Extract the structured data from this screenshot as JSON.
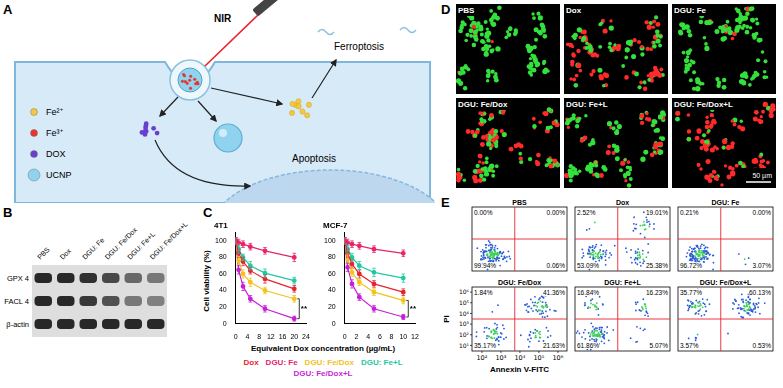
{
  "chart_data": [
    {
      "type": "line",
      "title": "4T1",
      "x": [
        0,
        1,
        2.5,
        5,
        10,
        20
      ],
      "xlim": [
        0,
        24
      ],
      "xticks": [
        0,
        4,
        8,
        12,
        16,
        20,
        24
      ],
      "ylim": [
        0,
        110
      ],
      "yticks": [
        0,
        20,
        40,
        60,
        80,
        100
      ],
      "grid": false,
      "marker": "circle",
      "series": [
        {
          "name": "Dox",
          "color": "#e8232e",
          "values": [
            100,
            85,
            75,
            64,
            54,
            42
          ],
          "errors": [
            4,
            5,
            5,
            4,
            5,
            4
          ]
        },
        {
          "name": "DGU: Fe",
          "color": "#e6246c",
          "values": [
            100,
            98,
            96,
            93,
            88,
            80
          ],
          "errors": [
            3,
            4,
            4,
            4,
            4,
            5
          ]
        },
        {
          "name": "DGU: Fe/Dox",
          "color": "#f2c31b",
          "values": [
            100,
            76,
            60,
            50,
            40,
            30
          ],
          "errors": [
            4,
            5,
            5,
            5,
            4,
            4
          ]
        },
        {
          "name": "DGU: Fe+L",
          "color": "#1fc9a2",
          "values": [
            100,
            90,
            80,
            70,
            61,
            52
          ],
          "errors": [
            4,
            5,
            4,
            5,
            5,
            4
          ]
        },
        {
          "name": "DGU: Fe/Dox+L",
          "color": "#c81fd8",
          "values": [
            100,
            65,
            45,
            30,
            18,
            6
          ],
          "errors": [
            4,
            5,
            5,
            4,
            4,
            3
          ]
        }
      ],
      "annotations": [
        {
          "text": "**",
          "between": [
            "DGU: Fe/Dox",
            "DGU: Fe/Dox+L"
          ]
        }
      ]
    },
    {
      "type": "line",
      "title": "MCF-7",
      "x": [
        0,
        0.5,
        1.25,
        2.5,
        5,
        10
      ],
      "xlim": [
        0,
        12
      ],
      "xticks": [
        0,
        2,
        4,
        6,
        8,
        10,
        12
      ],
      "ylim": [
        0,
        110
      ],
      "yticks": [
        0,
        20,
        40,
        60,
        80,
        100
      ],
      "grid": false,
      "marker": "circle",
      "series": [
        {
          "name": "Dox",
          "color": "#e8232e",
          "values": [
            100,
            85,
            72,
            60,
            48,
            38
          ],
          "errors": [
            4,
            5,
            5,
            5,
            4,
            4
          ]
        },
        {
          "name": "DGU: Fe",
          "color": "#e6246c",
          "values": [
            100,
            98,
            96,
            94,
            90,
            85
          ],
          "errors": [
            3,
            4,
            4,
            4,
            4,
            4
          ]
        },
        {
          "name": "DGU: Fe/Dox",
          "color": "#f2c31b",
          "values": [
            100,
            78,
            62,
            50,
            38,
            28
          ],
          "errors": [
            4,
            5,
            5,
            4,
            4,
            4
          ]
        },
        {
          "name": "DGU: Fe+L",
          "color": "#1fc9a2",
          "values": [
            100,
            90,
            80,
            70,
            62,
            55
          ],
          "errors": [
            4,
            5,
            5,
            5,
            5,
            5
          ]
        },
        {
          "name": "DGU: Fe/Dox+L",
          "color": "#c81fd8",
          "values": [
            100,
            68,
            48,
            32,
            18,
            8
          ],
          "errors": [
            4,
            5,
            5,
            4,
            4,
            3
          ]
        }
      ],
      "annotations": [
        {
          "text": "**",
          "between": [
            "DGU: Fe/Dox",
            "DGU: Fe/Dox+L"
          ]
        }
      ]
    }
  ],
  "figure": {
    "A": {
      "letter": "A",
      "nir": "NIR",
      "ferroptosis": "Ferroptosis",
      "apoptosis": "Apoptosis",
      "legend": [
        {
          "label": "Fe²⁺",
          "color": "#f5c842"
        },
        {
          "label": "Fe³⁺",
          "color": "#e8352e"
        },
        {
          "label": "DOX",
          "color": "#6a3fd0"
        },
        {
          "label": "UCNP",
          "color": "#8fd3ef"
        }
      ]
    },
    "B": {
      "letter": "B",
      "lanes": [
        "PBS",
        "Dox",
        "DGU: Fe",
        "DGU: Fe/Dox",
        "DGU: Fe+L",
        "DGU: Fe/Dox+L"
      ],
      "rows": [
        {
          "label": "GPX 4",
          "intensity": [
            1,
            1,
            0.95,
            0.8,
            0.6,
            0.5
          ]
        },
        {
          "label": "FACL 4",
          "intensity": [
            1,
            1,
            0.9,
            0.75,
            0.5,
            0.45
          ]
        },
        {
          "label": "β-actin",
          "intensity": [
            1,
            1,
            1,
            1,
            1,
            1
          ]
        }
      ]
    },
    "C": {
      "letter": "C",
      "x_label": "Equivalent Dox concentration (µg/mL)",
      "y_label": "Cell viability (%)",
      "legend": "bottom"
    },
    "D": {
      "letter": "D",
      "scale_bar": "50 µm",
      "images": [
        {
          "label": "PBS",
          "dead_share": 0.04
        },
        {
          "label": "Dox",
          "dead_share": 0.6
        },
        {
          "label": "DGU: Fe",
          "dead_share": 0.08
        },
        {
          "label": "DGU: Fe/Dox",
          "dead_share": 0.5
        },
        {
          "label": "DGU: Fe+L",
          "dead_share": 0.25
        },
        {
          "label": "DGU: Fe/Dox+L",
          "dead_share": 0.85
        }
      ]
    },
    "E": {
      "letter": "E",
      "x_label": "Annexin V-FITC",
      "y_label": "PI",
      "xlim": [
        30,
        3000000
      ],
      "xticks": [
        {
          "value": 100,
          "label": "10²"
        },
        {
          "value": 1000,
          "label": "10³"
        },
        {
          "value": 10000,
          "label": "10⁴"
        },
        {
          "value": 100000,
          "label": "10⁵"
        },
        {
          "value": 1000000,
          "label": "10⁶"
        }
      ],
      "ylim": [
        3,
        3000000
      ],
      "yticks": [
        {
          "value": 10,
          "label": "10¹"
        },
        {
          "value": 100,
          "label": "10²"
        },
        {
          "value": 1000,
          "label": "10³"
        },
        {
          "value": 10000,
          "label": "10⁴"
        },
        {
          "value": 100000,
          "label": "10⁵"
        },
        {
          "value": 1000000,
          "label": "10⁶"
        }
      ],
      "plots": [
        {
          "label": "PBS",
          "values": [
            0.0,
            0.0,
            99.94,
            0.06
          ],
          "value_labels": [
            "0.00%",
            "0.00%",
            "99.94%",
            "0.06%"
          ]
        },
        {
          "label": "Dox",
          "values": [
            2.52,
            19.01,
            53.09,
            25.38
          ],
          "value_labels": [
            "2.52%",
            "19.01%",
            "53.09%",
            "25.38%"
          ]
        },
        {
          "label": "DGU: Fe",
          "values": [
            0.21,
            0.0,
            96.72,
            3.07
          ],
          "value_labels": [
            "0.21%",
            "0.00%",
            "96.72%",
            "3.07%"
          ]
        },
        {
          "label": "DGU: Fe/Dox",
          "values": [
            1.84,
            41.36,
            35.17,
            21.63
          ],
          "value_labels": [
            "1.84%",
            "41.36%",
            "35.17%",
            "21.63%"
          ]
        },
        {
          "label": "DGU: Fe+L",
          "values": [
            16.84,
            16.23,
            61.86,
            5.07
          ],
          "value_labels": [
            "16.84%",
            "16.23%",
            "61.86%",
            "5.07%"
          ]
        },
        {
          "label": "DGU: Fe/Dox+L",
          "values": [
            35.77,
            60.13,
            3.57,
            0.53
          ],
          "value_labels": [
            "35.77%",
            "60.13%",
            "3.57%",
            "0.53%"
          ]
        }
      ]
    }
  }
}
